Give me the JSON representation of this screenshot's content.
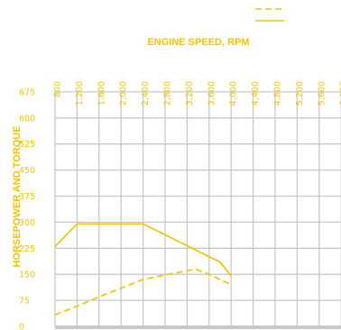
{
  "chart_data": {
    "type": "line",
    "title": "",
    "xlabel": "ENGINE SPEED, RPM",
    "ylabel": "HORSEPOWER AND TORQUE",
    "xlim": [
      800,
      6000
    ],
    "ylim": [
      0,
      675
    ],
    "x_ticks": [
      "800",
      "1,200",
      "1,600",
      "2,000",
      "2,400",
      "2,800",
      "3,200",
      "3,600",
      "4,000",
      "4,400",
      "4,800",
      "5,200",
      "5,600",
      "6,000"
    ],
    "y_ticks": [
      "0",
      "75",
      "150",
      "225",
      "300",
      "375",
      "450",
      "525",
      "600",
      "675"
    ],
    "grid": true,
    "legend_position": "top-right",
    "series": [
      {
        "style": "solid",
        "color": "#f5c400",
        "points": [
          [
            800,
            230
          ],
          [
            1200,
            295
          ],
          [
            2000,
            295
          ],
          [
            2400,
            295
          ],
          [
            3100,
            240
          ],
          [
            3800,
            185
          ],
          [
            4000,
            145
          ]
        ]
      },
      {
        "style": "dashed",
        "color": "#f5c400",
        "points": [
          [
            800,
            33
          ],
          [
            1200,
            58
          ],
          [
            1600,
            85
          ],
          [
            2000,
            110
          ],
          [
            2400,
            135
          ],
          [
            2800,
            148
          ],
          [
            3200,
            160
          ],
          [
            3350,
            165
          ],
          [
            3600,
            150
          ],
          [
            4000,
            120
          ]
        ]
      }
    ]
  }
}
